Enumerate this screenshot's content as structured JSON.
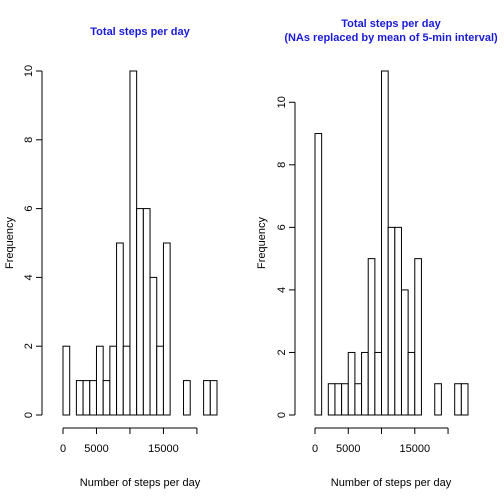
{
  "colors": {
    "title": "#1a1adb",
    "bar_fill": "#ffffff",
    "bar_stroke": "#000000"
  },
  "chart_data": [
    {
      "type": "bar",
      "title": "Total steps per day",
      "subtitle": "",
      "xlabel": "Number of steps per day",
      "ylabel": "Frequency",
      "bin_width": 1000,
      "bin_start": 0,
      "values": [
        2,
        0,
        1,
        1,
        1,
        2,
        1,
        2,
        5,
        2,
        10,
        6,
        6,
        4,
        2,
        5,
        0,
        0,
        1,
        0,
        0,
        1,
        1
      ],
      "xlim": [
        0,
        23000
      ],
      "ylim": [
        0,
        10
      ],
      "xticks": [
        0,
        5000,
        15000
      ],
      "yticks": [
        0,
        2,
        4,
        6,
        8,
        10
      ],
      "grid": false,
      "legend": "none"
    },
    {
      "type": "bar",
      "title": "Total steps per day",
      "subtitle": "(NAs replaced by mean of 5-min interval)",
      "xlabel": "Number of steps per day",
      "ylabel": "Frequency",
      "bin_width": 1000,
      "bin_start": 0,
      "values": [
        9,
        0,
        1,
        1,
        1,
        2,
        1,
        2,
        5,
        2,
        11,
        6,
        6,
        4,
        2,
        5,
        0,
        0,
        1,
        0,
        0,
        1,
        1
      ],
      "xlim": [
        0,
        23000
      ],
      "ylim": [
        0,
        11
      ],
      "xticks": [
        0,
        5000,
        15000
      ],
      "yticks": [
        0,
        2,
        4,
        6,
        8,
        10
      ],
      "grid": false,
      "legend": "none"
    }
  ]
}
